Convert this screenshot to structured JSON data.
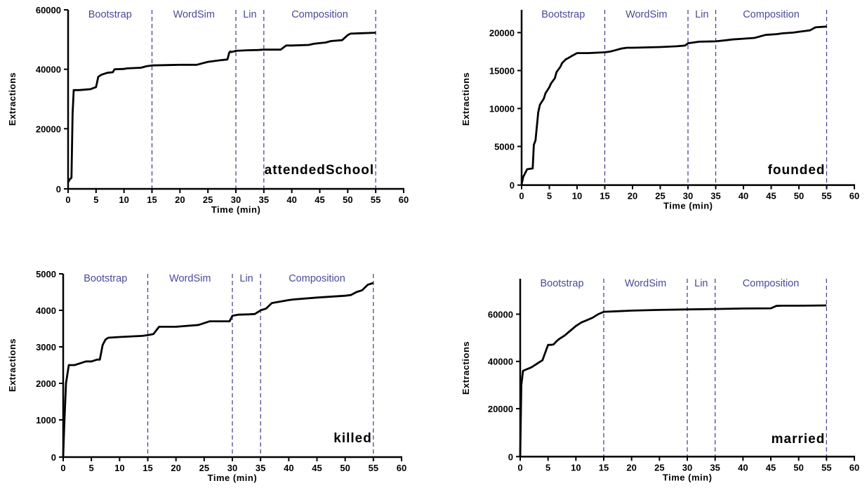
{
  "chart_data": [
    {
      "type": "line",
      "title": "attendedSchool",
      "xlabel": "Time (min)",
      "ylabel": "Extractions",
      "xlim": [
        0,
        60
      ],
      "ylim": [
        0,
        60000
      ],
      "xticks": [
        0,
        5,
        10,
        15,
        20,
        25,
        30,
        35,
        40,
        45,
        50,
        55,
        60
      ],
      "yticks": [
        0,
        20000,
        40000,
        60000
      ],
      "phases": [
        {
          "name": "Bootstrap",
          "start": 0,
          "end": 15
        },
        {
          "name": "WordSim",
          "start": 15,
          "end": 30
        },
        {
          "name": "Lin",
          "start": 30,
          "end": 35
        },
        {
          "name": "Composition",
          "start": 35,
          "end": 55
        }
      ],
      "series": [
        {
          "x": [
            0,
            0.3,
            0.6,
            0.8,
            1,
            2,
            4,
            5,
            5.4,
            6,
            7,
            8,
            8.3,
            10,
            10.5,
            13,
            14,
            15,
            20,
            23,
            24,
            25,
            27,
            28.5,
            28.8,
            29,
            29.2,
            29.4,
            29.6,
            30,
            32,
            34,
            35,
            38,
            39,
            40,
            43,
            44,
            45,
            46,
            47,
            49,
            50,
            50.5,
            55
          ],
          "values": [
            2000,
            3000,
            3500,
            25000,
            33000,
            33000,
            33300,
            34000,
            37500,
            38200,
            38800,
            39000,
            40000,
            40100,
            40300,
            40500,
            41000,
            41300,
            41500,
            41500,
            42000,
            42500,
            43000,
            43300,
            45500,
            46000,
            45800,
            45900,
            46000,
            46200,
            46400,
            46500,
            46600,
            46600,
            48000,
            48000,
            48200,
            48600,
            48800,
            49000,
            49500,
            49800,
            51500,
            52000,
            52300
          ]
        }
      ]
    },
    {
      "type": "line",
      "title": "founded",
      "xlabel": "Time (min)",
      "ylabel": "Extractions",
      "xlim": [
        0,
        60
      ],
      "ylim": [
        0,
        24000
      ],
      "xticks": [
        0,
        5,
        10,
        15,
        20,
        25,
        30,
        35,
        40,
        45,
        50,
        55,
        60
      ],
      "yticks": [
        0,
        5000,
        10000,
        15000,
        20000
      ],
      "phases": [
        {
          "name": "Bootstrap",
          "start": 0,
          "end": 15
        },
        {
          "name": "WordSim",
          "start": 15,
          "end": 30
        },
        {
          "name": "Lin",
          "start": 30,
          "end": 35
        },
        {
          "name": "Composition",
          "start": 35,
          "end": 55
        }
      ],
      "series": [
        {
          "x": [
            0,
            0.3,
            1,
            2,
            2.2,
            2.5,
            3,
            3.3,
            4,
            4.3,
            5,
            5.3,
            6,
            6.3,
            7,
            7.3,
            8,
            8.3,
            9,
            9.5,
            10,
            10.5,
            12,
            15,
            16,
            17,
            18,
            19,
            20,
            25,
            28,
            29.5,
            30,
            32,
            35,
            37,
            38,
            40,
            42,
            43,
            44,
            46,
            47,
            49,
            50,
            52,
            53,
            55
          ],
          "values": [
            0,
            1000,
            2000,
            2100,
            5200,
            5800,
            9500,
            10500,
            11300,
            12000,
            12800,
            13300,
            14000,
            14800,
            15500,
            16000,
            16500,
            16600,
            16900,
            17100,
            17300,
            17300,
            17300,
            17400,
            17500,
            17700,
            17900,
            18000,
            18000,
            18100,
            18200,
            18300,
            18600,
            18800,
            18850,
            19000,
            19100,
            19200,
            19300,
            19500,
            19700,
            19800,
            19900,
            20000,
            20100,
            20300,
            20700,
            20800
          ]
        }
      ]
    },
    {
      "type": "line",
      "title": "killed",
      "xlabel": "Time (min)",
      "ylabel": "Extractions",
      "xlim": [
        0,
        60
      ],
      "ylim": [
        0,
        5000
      ],
      "xticks": [
        0,
        5,
        10,
        15,
        20,
        25,
        30,
        35,
        40,
        45,
        50,
        55,
        60
      ],
      "yticks": [
        0,
        1000,
        2000,
        3000,
        4000,
        5000
      ],
      "phases": [
        {
          "name": "Bootstrap",
          "start": 0,
          "end": 15
        },
        {
          "name": "WordSim",
          "start": 15,
          "end": 30
        },
        {
          "name": "Lin",
          "start": 30,
          "end": 35
        },
        {
          "name": "Composition",
          "start": 35,
          "end": 55
        }
      ],
      "series": [
        {
          "x": [
            0,
            0.2,
            0.5,
            1,
            2,
            3,
            4,
            5,
            6,
            6.5,
            7,
            7.5,
            8,
            10,
            14,
            15,
            16,
            17,
            20,
            24,
            25,
            26,
            29,
            29.5,
            30,
            31,
            33,
            34,
            35,
            36,
            37,
            40,
            41,
            45,
            50,
            51,
            52,
            53,
            54,
            55
          ],
          "values": [
            0,
            900,
            2000,
            2500,
            2500,
            2550,
            2600,
            2600,
            2650,
            2650,
            3050,
            3200,
            3250,
            3270,
            3300,
            3320,
            3350,
            3550,
            3550,
            3600,
            3650,
            3700,
            3700,
            3700,
            3850,
            3880,
            3890,
            3900,
            4000,
            4050,
            4200,
            4280,
            4300,
            4350,
            4400,
            4420,
            4500,
            4550,
            4700,
            4750
          ]
        }
      ]
    },
    {
      "type": "line",
      "title": "married",
      "xlabel": "Time (min)",
      "ylabel": "Extractions",
      "xlim": [
        0,
        60
      ],
      "ylim": [
        0,
        75000
      ],
      "xticks": [
        0,
        5,
        10,
        15,
        20,
        25,
        30,
        35,
        40,
        45,
        50,
        55,
        60
      ],
      "yticks": [
        0,
        20000,
        40000,
        60000
      ],
      "phases": [
        {
          "name": "Bootstrap",
          "start": 0,
          "end": 15
        },
        {
          "name": "WordSim",
          "start": 15,
          "end": 30
        },
        {
          "name": "Lin",
          "start": 30,
          "end": 35
        },
        {
          "name": "Composition",
          "start": 35,
          "end": 55
        }
      ],
      "series": [
        {
          "x": [
            0,
            0.2,
            0.5,
            1,
            2,
            3,
            4,
            5,
            5.5,
            6,
            6.5,
            7,
            8,
            9,
            10,
            11,
            12,
            13,
            14,
            15,
            20,
            25,
            30,
            35,
            40,
            45,
            46,
            47,
            50,
            55
          ],
          "values": [
            0,
            30000,
            36000,
            36500,
            37500,
            39000,
            40500,
            47000,
            47000,
            47200,
            48500,
            49500,
            51000,
            53000,
            55000,
            56500,
            57500,
            58500,
            60000,
            61000,
            61500,
            61800,
            62000,
            62200,
            62400,
            62500,
            63500,
            63600,
            63600,
            63700
          ]
        }
      ]
    }
  ]
}
